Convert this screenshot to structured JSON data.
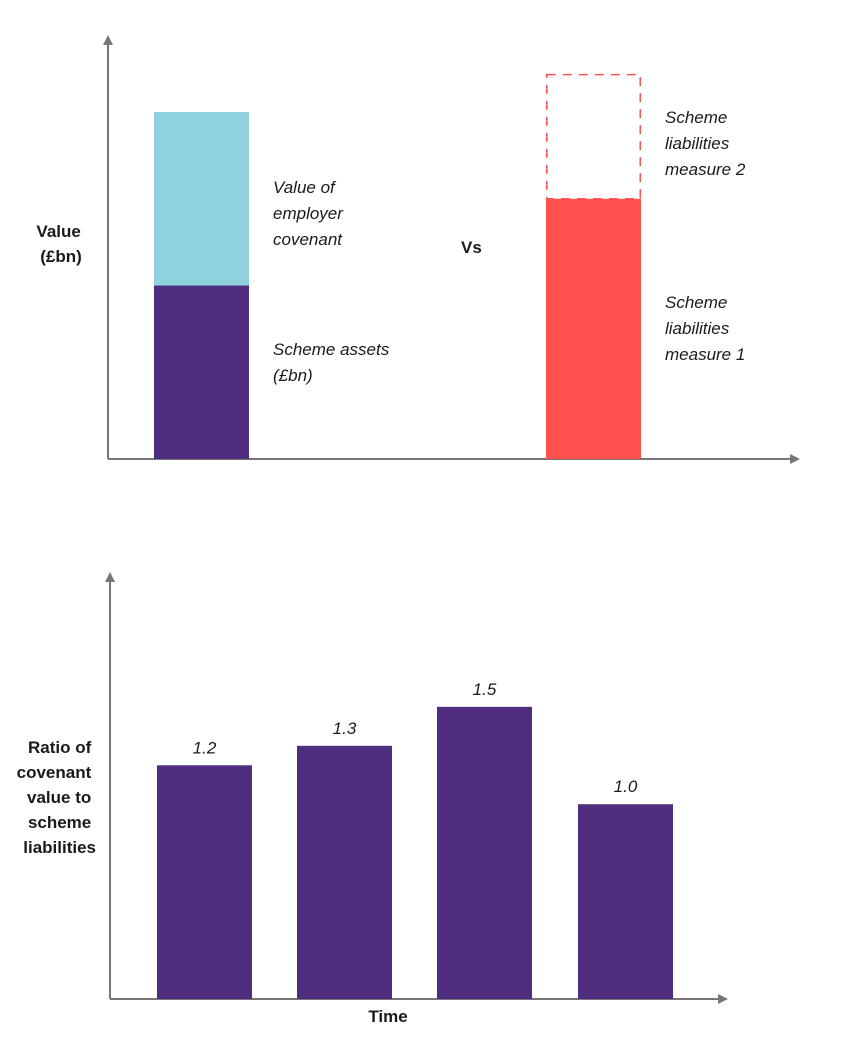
{
  "colors": {
    "assets": "#4f2d7f",
    "covenant": "#8ed1df",
    "liabilities": "#ff514d",
    "axis": "#777777",
    "text": "#1a1a1a"
  },
  "chart_data": [
    {
      "type": "bar",
      "title": "",
      "ylabel_lines": [
        "Value",
        "(£bn)"
      ],
      "xlabel": "",
      "comparison_word": "Vs",
      "bars": [
        {
          "name": "employer-stack",
          "segments": [
            {
              "name": "Scheme assets (£bn)",
              "value": 1.0,
              "style": "solid",
              "color_key": "assets",
              "label_lines": [
                "Scheme assets",
                "(£bn)"
              ]
            },
            {
              "name": "Value of employer covenant",
              "value": 1.0,
              "style": "solid",
              "color_key": "covenant",
              "label_lines": [
                "Value of",
                "employer",
                "covenant"
              ]
            }
          ]
        },
        {
          "name": "liabilities-stack",
          "segments": [
            {
              "name": "Scheme liabilities measure 1",
              "value": 1.5,
              "style": "solid",
              "color_key": "liabilities",
              "label_lines": [
                "Scheme",
                "liabilities",
                "measure 1"
              ]
            },
            {
              "name": "Scheme liabilities measure 2",
              "value": 0.72,
              "style": "dashed",
              "color_key": "liabilities",
              "label_lines": [
                "Scheme",
                "liabilities",
                "measure 2"
              ]
            }
          ]
        }
      ],
      "ylim": [
        0,
        2.3
      ]
    },
    {
      "type": "bar",
      "title": "",
      "ylabel_lines": [
        "Ratio of",
        "covenant",
        "value to",
        "scheme",
        "liabilities"
      ],
      "xlabel": "Time",
      "categories": [
        "",
        "",
        "",
        ""
      ],
      "values": [
        1.2,
        1.3,
        1.5,
        1.0
      ],
      "data_labels": [
        "1.2",
        "1.3",
        "1.5",
        "1.0"
      ],
      "ylim": [
        0,
        2.1
      ]
    }
  ]
}
